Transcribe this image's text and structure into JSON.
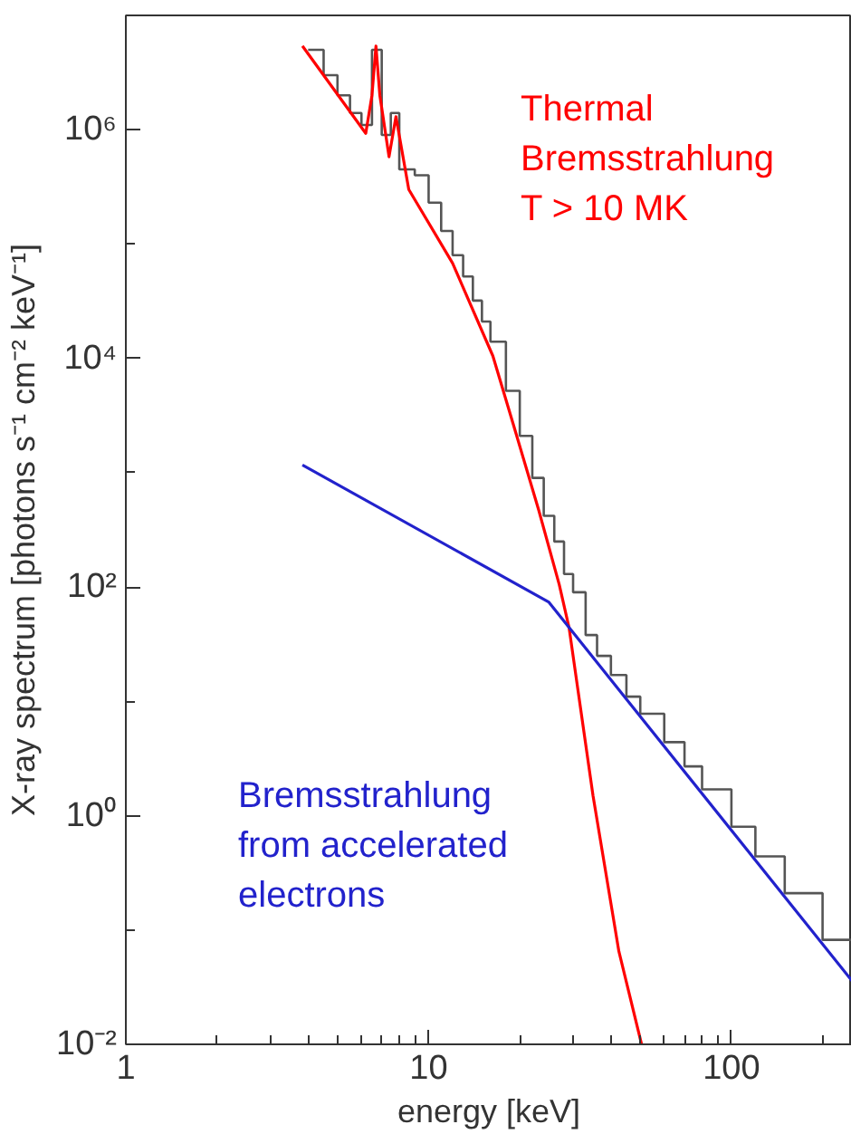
{
  "chart_data": {
    "type": "line",
    "xlabel": "energy [keV]",
    "ylabel": "X-ray spectrum [photons s⁻¹ cm⁻² keV⁻¹]",
    "log": "xy",
    "grid": false,
    "xlim": [
      1,
      250
    ],
    "ylim": [
      0.01,
      10000000
    ],
    "xticks": [
      1,
      10,
      100
    ],
    "yticks": [
      {
        "value": 0.01,
        "label": "10⁻²"
      },
      {
        "value": 1,
        "label": "10⁰"
      },
      {
        "value": 100,
        "label": "10²"
      },
      {
        "value": 10000,
        "label": "10⁴"
      },
      {
        "value": 1000000,
        "label": "10⁶"
      }
    ],
    "series": [
      {
        "type": "step",
        "color": "#555555",
        "x": [
          4,
          4.5,
          5,
          5.5,
          6,
          6.5,
          7,
          7.5,
          8,
          9,
          10,
          11,
          12,
          13,
          14,
          15,
          16,
          18,
          20,
          22,
          24,
          26,
          28,
          30,
          33,
          36,
          40,
          45,
          50,
          60,
          70,
          80,
          100,
          120,
          150,
          200,
          250
        ],
        "values": [
          5000000,
          3000000,
          2000000,
          1400000,
          1100000,
          5000000,
          900000,
          1400000,
          450000,
          400000,
          230000,
          130000,
          80000,
          52000,
          32000,
          21000,
          14000,
          5200,
          2100,
          900,
          420,
          250,
          130,
          90,
          38,
          25,
          17,
          11,
          7.8,
          4.4,
          2.7,
          1.7,
          0.8,
          0.44,
          0.21,
          0.082,
          0.039
        ]
      },
      {
        "name": "Thermal\nBremsstrahlung\nT > 10 MK",
        "color": "#ff0000",
        "x": [
          3.83,
          6.2,
          6.5,
          6.7,
          6.9,
          7.4,
          7.8,
          8.6,
          12,
          16.3,
          19,
          23.1,
          27,
          29.1,
          34.9,
          42.5,
          50.5
        ],
        "values": [
          5400000,
          930000,
          2000000,
          5400000,
          2000000,
          580000,
          1300000,
          300000,
          68000,
          10500,
          2700,
          470,
          105,
          44,
          1.5,
          0.065,
          0.01
        ]
      },
      {
        "name": "Bremsstrahlung\nfrom accelerated\nelectrons",
        "color": "#2222cc",
        "x": [
          3.83,
          24.9,
          250
        ],
        "values": [
          1170,
          74,
          0.036
        ]
      }
    ]
  }
}
